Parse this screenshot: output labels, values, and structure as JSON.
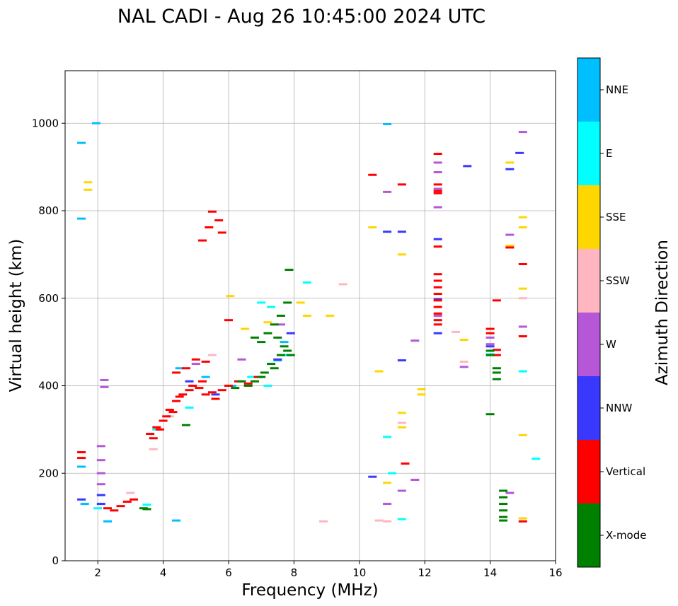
{
  "chart_data": {
    "type": "scatter",
    "title": "NAL CADI - Aug 26 10:45:00 2024 UTC",
    "xlabel": "Frequency (MHz)",
    "ylabel": "Virtual height (km)",
    "xlim": [
      1,
      16
    ],
    "ylim": [
      0,
      1120
    ],
    "xticks": [
      2,
      4,
      6,
      8,
      10,
      12,
      14,
      16
    ],
    "yticks": [
      0,
      200,
      400,
      600,
      800,
      1000
    ],
    "grid": true,
    "colorbar": {
      "label": "Azimuth Direction",
      "categories": [
        {
          "name": "X-mode",
          "color": "#008000"
        },
        {
          "name": "Vertical",
          "color": "#ff0000"
        },
        {
          "name": "NNW",
          "color": "#3838ff"
        },
        {
          "name": "W",
          "color": "#b557d6"
        },
        {
          "name": "SSW",
          "color": "#ffb6c1"
        },
        {
          "name": "SSE",
          "color": "#ffd700"
        },
        {
          "name": "E",
          "color": "#00ffff"
        },
        {
          "name": "NNE",
          "color": "#00bfff"
        }
      ]
    },
    "series": [
      {
        "name": "NNE",
        "points": [
          [
            1.5,
            955
          ],
          [
            1.5,
            782
          ],
          [
            1.95,
            1000
          ],
          [
            1.5,
            215
          ],
          [
            1.6,
            130
          ],
          [
            2.3,
            90
          ],
          [
            4.4,
            92
          ],
          [
            10.85,
            998
          ],
          [
            7.5,
            458
          ],
          [
            7.7,
            500
          ],
          [
            4.5,
            440
          ],
          [
            6.1,
            400
          ],
          [
            5.3,
            420
          ]
        ]
      },
      {
        "name": "E",
        "points": [
          [
            8.4,
            636
          ],
          [
            10.85,
            283
          ],
          [
            11.3,
            95
          ],
          [
            11.0,
            200
          ],
          [
            14.0,
            472
          ],
          [
            15.0,
            433
          ],
          [
            15.4,
            233
          ],
          [
            7.3,
            580
          ],
          [
            7.0,
            590
          ],
          [
            7.8,
            470
          ],
          [
            7.2,
            400
          ],
          [
            3.8,
            300
          ],
          [
            4.8,
            350
          ],
          [
            6.7,
            420
          ],
          [
            3.5,
            128
          ],
          [
            2.0,
            120
          ]
        ]
      },
      {
        "name": "SSE",
        "points": [
          [
            1.7,
            865
          ],
          [
            1.7,
            848
          ],
          [
            10.4,
            762
          ],
          [
            10.6,
            433
          ],
          [
            10.85,
            178
          ],
          [
            11.3,
            700
          ],
          [
            11.3,
            305
          ],
          [
            11.3,
            338
          ],
          [
            11.9,
            380
          ],
          [
            11.9,
            392
          ],
          [
            13.2,
            505
          ],
          [
            14.6,
            910
          ],
          [
            14.6,
            720
          ],
          [
            15.0,
            785
          ],
          [
            15.0,
            762
          ],
          [
            15.0,
            622
          ],
          [
            15.0,
            287
          ],
          [
            15.0,
            97
          ],
          [
            8.2,
            590
          ],
          [
            8.4,
            560
          ],
          [
            9.1,
            560
          ],
          [
            6.05,
            605
          ],
          [
            7.2,
            545
          ],
          [
            6.5,
            530
          ]
        ]
      },
      {
        "name": "SSW",
        "points": [
          [
            3.7,
            255
          ],
          [
            3.0,
            155
          ],
          [
            8.9,
            90
          ],
          [
            9.5,
            632
          ],
          [
            10.6,
            92
          ],
          [
            10.85,
            90
          ],
          [
            11.3,
            315
          ],
          [
            12.95,
            523
          ],
          [
            13.2,
            455
          ],
          [
            15.0,
            600
          ],
          [
            5.5,
            470
          ],
          [
            4.2,
            330
          ]
        ]
      },
      {
        "name": "W",
        "points": [
          [
            2.1,
            262
          ],
          [
            2.1,
            230
          ],
          [
            2.1,
            200
          ],
          [
            2.1,
            175
          ],
          [
            2.2,
            397
          ],
          [
            2.2,
            413
          ],
          [
            10.85,
            843
          ],
          [
            10.85,
            130
          ],
          [
            11.3,
            160
          ],
          [
            11.7,
            503
          ],
          [
            11.7,
            185
          ],
          [
            12.4,
            888
          ],
          [
            12.4,
            808
          ],
          [
            12.4,
            910
          ],
          [
            12.4,
            850
          ],
          [
            12.4,
            560
          ],
          [
            13.2,
            443
          ],
          [
            14.0,
            510
          ],
          [
            14.0,
            495
          ],
          [
            14.6,
            745
          ],
          [
            14.6,
            155
          ],
          [
            15.0,
            980
          ],
          [
            15.0,
            535
          ],
          [
            5.0,
            450
          ],
          [
            6.4,
            460
          ],
          [
            7.6,
            540
          ]
        ]
      },
      {
        "name": "NNW",
        "points": [
          [
            1.5,
            140
          ],
          [
            2.1,
            150
          ],
          [
            2.1,
            130
          ],
          [
            10.4,
            192
          ],
          [
            10.85,
            752
          ],
          [
            11.3,
            752
          ],
          [
            11.3,
            458
          ],
          [
            12.4,
            735
          ],
          [
            12.4,
            598
          ],
          [
            12.4,
            520
          ],
          [
            13.3,
            902
          ],
          [
            14.6,
            895
          ],
          [
            14.9,
            932
          ],
          [
            14.0,
            490
          ],
          [
            7.9,
            520
          ],
          [
            7.5,
            460
          ],
          [
            4.8,
            410
          ],
          [
            5.6,
            380
          ]
        ]
      },
      {
        "name": "Vertical",
        "points": [
          [
            1.5,
            248
          ],
          [
            1.5,
            235
          ],
          [
            5.2,
            732
          ],
          [
            5.4,
            762
          ],
          [
            5.5,
            798
          ],
          [
            5.7,
            778
          ],
          [
            5.8,
            750
          ],
          [
            6.0,
            550
          ],
          [
            10.4,
            882
          ],
          [
            11.3,
            860
          ],
          [
            11.4,
            222
          ],
          [
            12.4,
            930
          ],
          [
            12.4,
            718
          ],
          [
            12.4,
            655
          ],
          [
            12.4,
            640
          ],
          [
            12.4,
            625
          ],
          [
            12.4,
            610
          ],
          [
            12.4,
            595
          ],
          [
            12.4,
            580
          ],
          [
            12.4,
            565
          ],
          [
            12.4,
            550
          ],
          [
            12.4,
            540
          ],
          [
            12.4,
            860
          ],
          [
            12.4,
            845
          ],
          [
            12.4,
            840
          ],
          [
            14.0,
            530
          ],
          [
            14.0,
            520
          ],
          [
            14.2,
            595
          ],
          [
            14.2,
            482
          ],
          [
            14.2,
            470
          ],
          [
            14.6,
            716
          ],
          [
            15.0,
            678
          ],
          [
            15.0,
            513
          ],
          [
            15.0,
            90
          ],
          [
            3.6,
            290
          ],
          [
            3.7,
            280
          ],
          [
            3.8,
            305
          ],
          [
            3.9,
            300
          ],
          [
            4.0,
            320
          ],
          [
            4.1,
            330
          ],
          [
            4.2,
            345
          ],
          [
            4.3,
            340
          ],
          [
            4.4,
            365
          ],
          [
            4.5,
            375
          ],
          [
            4.6,
            380
          ],
          [
            4.8,
            390
          ],
          [
            4.9,
            400
          ],
          [
            5.1,
            395
          ],
          [
            5.2,
            410
          ],
          [
            5.3,
            380
          ],
          [
            5.5,
            385
          ],
          [
            5.6,
            370
          ],
          [
            5.8,
            390
          ],
          [
            6.0,
            400
          ],
          [
            6.3,
            410
          ],
          [
            6.6,
            405
          ],
          [
            6.9,
            420
          ],
          [
            4.4,
            430
          ],
          [
            4.7,
            440
          ],
          [
            5.0,
            460
          ],
          [
            5.3,
            455
          ],
          [
            2.3,
            120
          ],
          [
            2.5,
            115
          ],
          [
            2.7,
            125
          ],
          [
            2.9,
            135
          ],
          [
            3.1,
            140
          ]
        ]
      },
      {
        "name": "X-mode",
        "points": [
          [
            7.85,
            665
          ],
          [
            14.0,
            335
          ],
          [
            14.0,
            470
          ],
          [
            14.2,
            415
          ],
          [
            14.4,
            160
          ],
          [
            14.4,
            145
          ],
          [
            14.4,
            130
          ],
          [
            14.4,
            115
          ],
          [
            14.4,
            100
          ],
          [
            14.4,
            92
          ],
          [
            14.0,
            480
          ],
          [
            14.2,
            440
          ],
          [
            14.2,
            430
          ],
          [
            7.5,
            510
          ],
          [
            7.7,
            490
          ],
          [
            7.8,
            480
          ],
          [
            7.9,
            470
          ],
          [
            7.6,
            470
          ],
          [
            7.4,
            440
          ],
          [
            7.3,
            450
          ],
          [
            7.1,
            430
          ],
          [
            7.0,
            420
          ],
          [
            6.8,
            410
          ],
          [
            6.6,
            400
          ],
          [
            6.4,
            410
          ],
          [
            6.2,
            395
          ],
          [
            7.6,
            560
          ],
          [
            7.8,
            590
          ],
          [
            7.4,
            540
          ],
          [
            7.2,
            520
          ],
          [
            7.0,
            500
          ],
          [
            6.8,
            510
          ],
          [
            3.5,
            118
          ],
          [
            3.4,
            120
          ],
          [
            4.7,
            310
          ]
        ]
      }
    ]
  }
}
